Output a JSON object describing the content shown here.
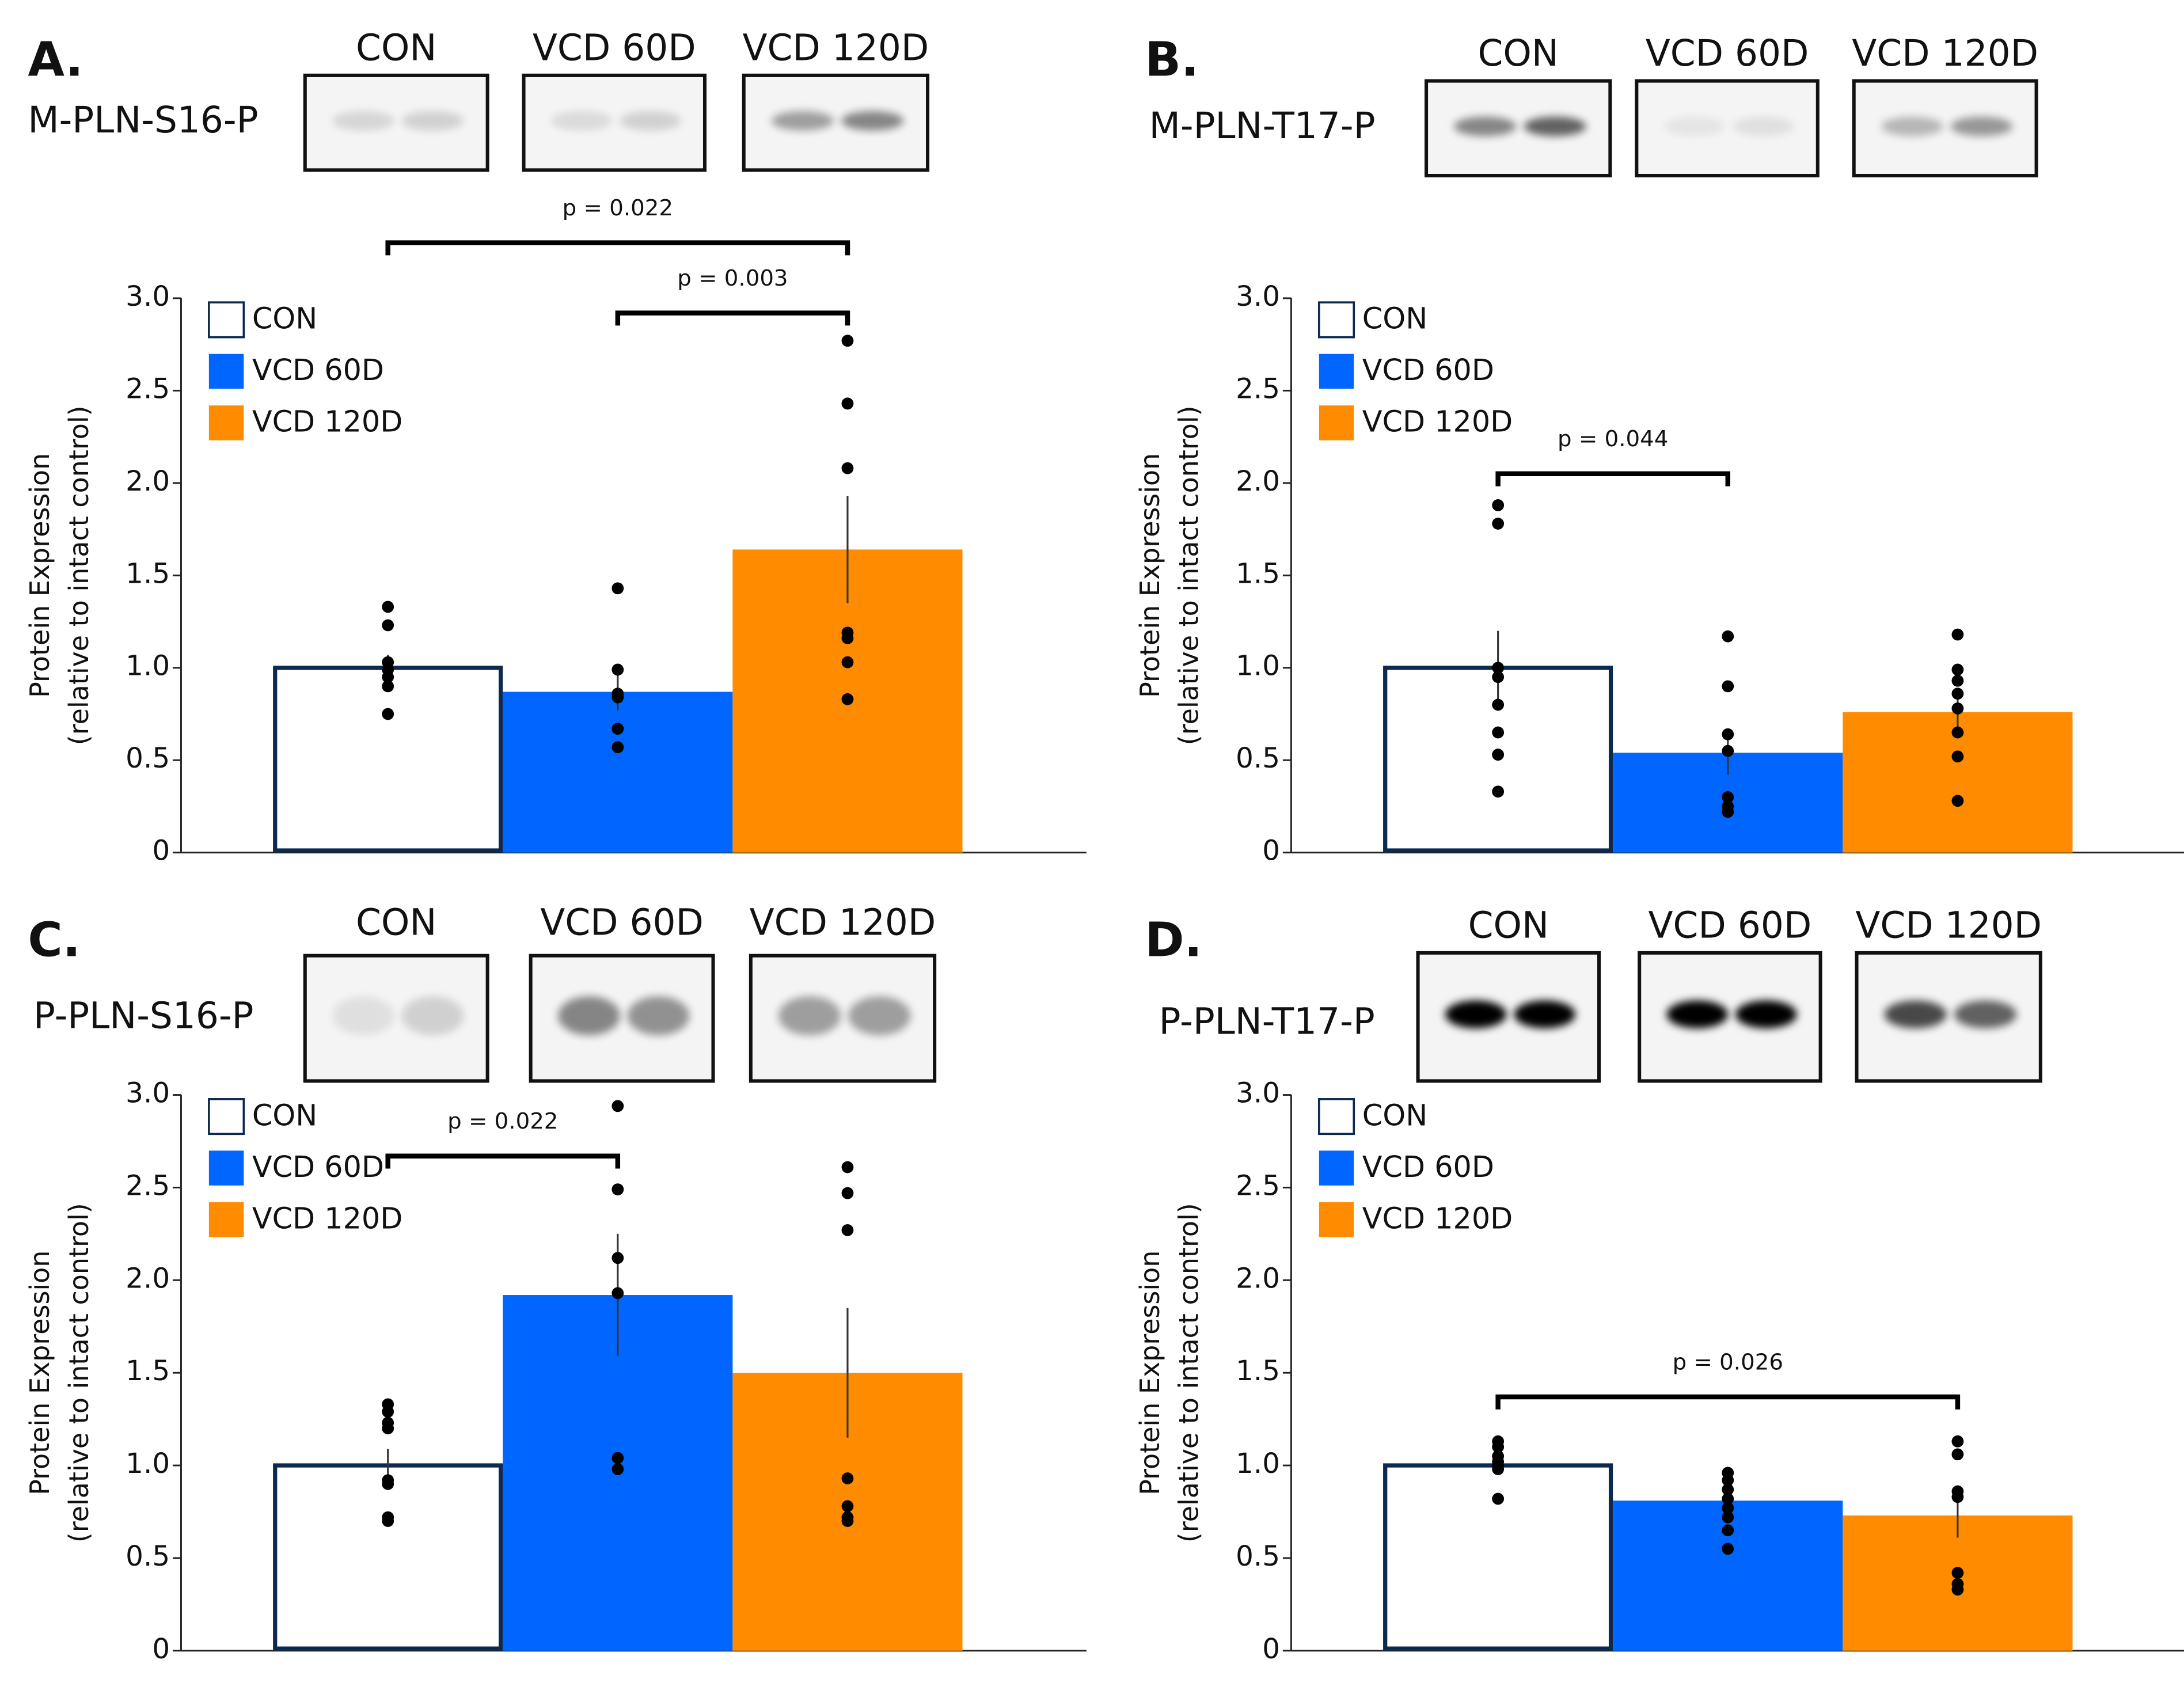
{
  "chart_data": [
    {
      "type": "bar",
      "panel": "A.",
      "blot_label": "M-PLN-S16-P",
      "blot_lanes": [
        "CON",
        "VCD 60D",
        "VCD 120D"
      ],
      "ylabel": [
        "Protein Expression",
        "(relative to intact control)"
      ],
      "categories": [
        "CON",
        "VCD 60D",
        "VCD 120D"
      ],
      "colors": [
        "#ffffff",
        "#0066ff",
        "#ff8c00"
      ],
      "values": [
        1.0,
        0.87,
        1.64
      ],
      "errors": [
        0.07,
        0.1,
        0.29
      ],
      "points": [
        [
          1.33,
          1.23,
          1.03,
          0.99,
          0.95,
          0.9,
          0.75
        ],
        [
          1.43,
          0.99,
          0.86,
          0.84,
          0.67,
          0.57
        ],
        [
          2.77,
          2.43,
          2.08,
          1.19,
          1.16,
          1.03,
          0.83
        ]
      ],
      "annotations": [
        {
          "text": "p = 0.022",
          "between": [
            "CON",
            "VCD 120D"
          ],
          "y": 3.3
        },
        {
          "text": "p = 0.003",
          "between": [
            "VCD 60D",
            "VCD 120D"
          ],
          "y": 2.92
        }
      ],
      "ylim": [
        0,
        3
      ],
      "yticks": [
        0,
        0.5,
        {
          "value": 1,
          "label": "1.0"
        },
        1.5,
        {
          "value": 2,
          "label": "2.0"
        },
        2.5,
        {
          "value": 3,
          "label": "3.0"
        }
      ]
    },
    {
      "type": "bar",
      "panel": "B.",
      "blot_label": "M-PLN-T17-P",
      "blot_lanes": [
        "CON",
        "VCD 60D",
        "VCD 120D"
      ],
      "ylabel": [
        "Protein Expression",
        "(relative to intact control)"
      ],
      "categories": [
        "CON",
        "VCD 60D",
        "VCD 120D"
      ],
      "colors": [
        "#ffffff",
        "#0066ff",
        "#ff8c00"
      ],
      "values": [
        1.0,
        0.54,
        0.76
      ],
      "errors": [
        0.2,
        0.12,
        0.1
      ],
      "points": [
        [
          1.88,
          1.78,
          1.0,
          0.95,
          0.8,
          0.65,
          0.53,
          0.33
        ],
        [
          1.17,
          0.9,
          0.64,
          0.55,
          0.3,
          0.25,
          0.22
        ],
        [
          1.18,
          0.99,
          0.93,
          0.86,
          0.78,
          0.65,
          0.52,
          0.28
        ]
      ],
      "annotations": [
        {
          "text": "p = 0.044",
          "between": [
            "CON",
            "VCD 60D"
          ],
          "y": 2.05
        }
      ],
      "ylim": [
        0,
        3
      ],
      "yticks": [
        0,
        0.5,
        {
          "value": 1,
          "label": "1.0"
        },
        1.5,
        {
          "value": 2,
          "label": "2.0"
        },
        2.5,
        {
          "value": 3,
          "label": "3.0"
        }
      ]
    },
    {
      "type": "bar",
      "panel": "C.",
      "blot_label": "P-PLN-S16-P",
      "blot_lanes": [
        "CON",
        "VCD 60D",
        "VCD 120D"
      ],
      "ylabel": [
        "Protein Expression",
        "(relative to intact control)"
      ],
      "categories": [
        "CON",
        "VCD 60D",
        "VCD 120D"
      ],
      "colors": [
        "#ffffff",
        "#0066ff",
        "#ff8c00"
      ],
      "values": [
        1.0,
        1.92,
        1.5
      ],
      "errors": [
        0.09,
        0.33,
        0.35
      ],
      "points": [
        [
          1.33,
          1.29,
          1.23,
          1.2,
          0.92,
          0.9,
          0.72,
          0.7
        ],
        [
          2.94,
          2.49,
          2.12,
          1.93,
          1.04,
          0.98
        ],
        [
          2.61,
          2.47,
          2.27,
          0.93,
          0.78,
          0.72,
          0.7
        ]
      ],
      "annotations": [
        {
          "text": "p = 0.022",
          "between": [
            "CON",
            "VCD 60D"
          ],
          "y": 2.67
        }
      ],
      "ylim": [
        0,
        3
      ],
      "yticks": [
        0,
        0.5,
        {
          "value": 1,
          "label": "1.0"
        },
        1.5,
        {
          "value": 2,
          "label": "2.0"
        },
        2.5,
        {
          "value": 3,
          "label": "3.0"
        }
      ]
    },
    {
      "type": "bar",
      "panel": "D.",
      "blot_label": "P-PLN-T17-P",
      "blot_lanes": [
        "CON",
        "VCD 60D",
        "VCD 120D"
      ],
      "ylabel": [
        "Protein Expression",
        "(relative to intact control)"
      ],
      "categories": [
        "CON",
        "VCD 60D",
        "VCD 120D"
      ],
      "colors": [
        "#ffffff",
        "#0066ff",
        "#ff8c00"
      ],
      "values": [
        1.0,
        0.81,
        0.73
      ],
      "errors": [
        0.03,
        0.05,
        0.12
      ],
      "points": [
        [
          1.13,
          1.1,
          1.05,
          1.02,
          1.0,
          0.98,
          0.82
        ],
        [
          0.96,
          0.92,
          0.87,
          0.82,
          0.77,
          0.72,
          0.65,
          0.55
        ],
        [
          1.13,
          1.06,
          0.86,
          0.83,
          0.42,
          0.36,
          0.33
        ]
      ],
      "annotations": [
        {
          "text": "p = 0.026",
          "between": [
            "CON",
            "VCD 120D"
          ],
          "y": 1.37
        }
      ],
      "ylim": [
        0,
        3
      ],
      "yticks": [
        0,
        0.5,
        {
          "value": 1,
          "label": "1.0"
        },
        1.5,
        {
          "value": 2,
          "label": "2.0"
        },
        2.5,
        {
          "value": 3,
          "label": "3.0"
        }
      ]
    }
  ]
}
